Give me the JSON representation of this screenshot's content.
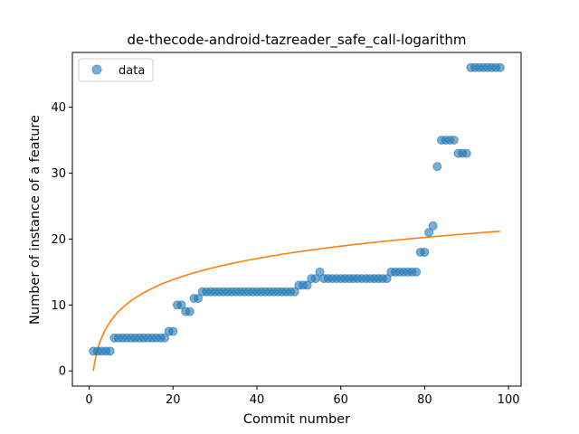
{
  "chart_data": {
    "type": "scatter",
    "title": "de-thecode-android-tazreader_safe_call-logarithm",
    "xlabel": "Commit number",
    "ylabel": "Number of instance of a feature",
    "xlim": [
      -4,
      103
    ],
    "ylim": [
      -2.3,
      48.3
    ],
    "xticks": [
      0,
      20,
      40,
      60,
      80,
      100
    ],
    "yticks": [
      0,
      10,
      20,
      30,
      40
    ],
    "grid": false,
    "legend": {
      "placement": "upper-left",
      "entries": [
        "data"
      ]
    },
    "colors": {
      "data": "#1f77b4",
      "fit": "#ff7f0e"
    },
    "series": [
      {
        "name": "data",
        "kind": "scatter",
        "x": [
          1,
          2,
          3,
          4,
          5,
          6,
          7,
          8,
          9,
          10,
          11,
          12,
          13,
          14,
          15,
          16,
          17,
          18,
          19,
          20,
          21,
          22,
          23,
          24,
          25,
          26,
          27,
          28,
          29,
          30,
          31,
          32,
          33,
          34,
          35,
          36,
          37,
          38,
          39,
          40,
          41,
          42,
          43,
          44,
          45,
          46,
          47,
          48,
          49,
          50,
          51,
          52,
          53,
          54,
          55,
          56,
          57,
          58,
          59,
          60,
          61,
          62,
          63,
          64,
          65,
          66,
          67,
          68,
          69,
          70,
          71,
          72,
          73,
          74,
          75,
          76,
          77,
          78,
          79,
          80,
          81,
          82,
          83,
          84,
          85,
          86,
          87,
          88,
          89,
          90,
          91,
          92,
          93,
          94,
          95,
          96,
          97,
          98
        ],
        "y": [
          3,
          3,
          3,
          3,
          3,
          5,
          5,
          5,
          5,
          5,
          5,
          5,
          5,
          5,
          5,
          5,
          5,
          5,
          6,
          6,
          10,
          10,
          9,
          9,
          11,
          11,
          12,
          12,
          12,
          12,
          12,
          12,
          12,
          12,
          12,
          12,
          12,
          12,
          12,
          12,
          12,
          12,
          12,
          12,
          12,
          12,
          12,
          12,
          12,
          13,
          13,
          13,
          14,
          14,
          15,
          14,
          14,
          14,
          14,
          14,
          14,
          14,
          14,
          14,
          14,
          14,
          14,
          14,
          14,
          14,
          14,
          15,
          15,
          15,
          15,
          15,
          15,
          15,
          18,
          18,
          21,
          22,
          31,
          35,
          35,
          35,
          35,
          33,
          33,
          33,
          46,
          46,
          46,
          46,
          46,
          46,
          46,
          46
        ]
      },
      {
        "name": "",
        "kind": "line",
        "fit": {
          "a": 4.62,
          "b": 0,
          "x_from": 1,
          "x_to": 98
        }
      }
    ]
  }
}
